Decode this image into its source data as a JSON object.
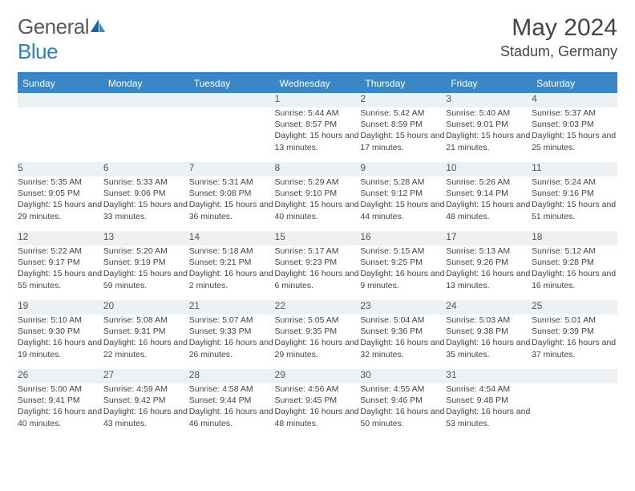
{
  "brand": {
    "part1": "General",
    "part2": "Blue"
  },
  "title": "May 2024",
  "location": "Stadum, Germany",
  "colors": {
    "header_bg": "#3a87c7",
    "header_text": "#ffffff",
    "daynum_bg": "#eef1f3",
    "rule": "#2f7ebf",
    "text": "#444444"
  },
  "weekdays": [
    "Sunday",
    "Monday",
    "Tuesday",
    "Wednesday",
    "Thursday",
    "Friday",
    "Saturday"
  ],
  "weeks": [
    [
      null,
      null,
      null,
      {
        "n": "1",
        "sr": "5:44 AM",
        "ss": "8:57 PM",
        "dl": "15 hours and 13 minutes."
      },
      {
        "n": "2",
        "sr": "5:42 AM",
        "ss": "8:59 PM",
        "dl": "15 hours and 17 minutes."
      },
      {
        "n": "3",
        "sr": "5:40 AM",
        "ss": "9:01 PM",
        "dl": "15 hours and 21 minutes."
      },
      {
        "n": "4",
        "sr": "5:37 AM",
        "ss": "9:03 PM",
        "dl": "15 hours and 25 minutes."
      }
    ],
    [
      {
        "n": "5",
        "sr": "5:35 AM",
        "ss": "9:05 PM",
        "dl": "15 hours and 29 minutes."
      },
      {
        "n": "6",
        "sr": "5:33 AM",
        "ss": "9:06 PM",
        "dl": "15 hours and 33 minutes."
      },
      {
        "n": "7",
        "sr": "5:31 AM",
        "ss": "9:08 PM",
        "dl": "15 hours and 36 minutes."
      },
      {
        "n": "8",
        "sr": "5:29 AM",
        "ss": "9:10 PM",
        "dl": "15 hours and 40 minutes."
      },
      {
        "n": "9",
        "sr": "5:28 AM",
        "ss": "9:12 PM",
        "dl": "15 hours and 44 minutes."
      },
      {
        "n": "10",
        "sr": "5:26 AM",
        "ss": "9:14 PM",
        "dl": "15 hours and 48 minutes."
      },
      {
        "n": "11",
        "sr": "5:24 AM",
        "ss": "9:16 PM",
        "dl": "15 hours and 51 minutes."
      }
    ],
    [
      {
        "n": "12",
        "sr": "5:22 AM",
        "ss": "9:17 PM",
        "dl": "15 hours and 55 minutes."
      },
      {
        "n": "13",
        "sr": "5:20 AM",
        "ss": "9:19 PM",
        "dl": "15 hours and 59 minutes."
      },
      {
        "n": "14",
        "sr": "5:18 AM",
        "ss": "9:21 PM",
        "dl": "16 hours and 2 minutes."
      },
      {
        "n": "15",
        "sr": "5:17 AM",
        "ss": "9:23 PM",
        "dl": "16 hours and 6 minutes."
      },
      {
        "n": "16",
        "sr": "5:15 AM",
        "ss": "9:25 PM",
        "dl": "16 hours and 9 minutes."
      },
      {
        "n": "17",
        "sr": "5:13 AM",
        "ss": "9:26 PM",
        "dl": "16 hours and 13 minutes."
      },
      {
        "n": "18",
        "sr": "5:12 AM",
        "ss": "9:28 PM",
        "dl": "16 hours and 16 minutes."
      }
    ],
    [
      {
        "n": "19",
        "sr": "5:10 AM",
        "ss": "9:30 PM",
        "dl": "16 hours and 19 minutes."
      },
      {
        "n": "20",
        "sr": "5:08 AM",
        "ss": "9:31 PM",
        "dl": "16 hours and 22 minutes."
      },
      {
        "n": "21",
        "sr": "5:07 AM",
        "ss": "9:33 PM",
        "dl": "16 hours and 26 minutes."
      },
      {
        "n": "22",
        "sr": "5:05 AM",
        "ss": "9:35 PM",
        "dl": "16 hours and 29 minutes."
      },
      {
        "n": "23",
        "sr": "5:04 AM",
        "ss": "9:36 PM",
        "dl": "16 hours and 32 minutes."
      },
      {
        "n": "24",
        "sr": "5:03 AM",
        "ss": "9:38 PM",
        "dl": "16 hours and 35 minutes."
      },
      {
        "n": "25",
        "sr": "5:01 AM",
        "ss": "9:39 PM",
        "dl": "16 hours and 37 minutes."
      }
    ],
    [
      {
        "n": "26",
        "sr": "5:00 AM",
        "ss": "9:41 PM",
        "dl": "16 hours and 40 minutes."
      },
      {
        "n": "27",
        "sr": "4:59 AM",
        "ss": "9:42 PM",
        "dl": "16 hours and 43 minutes."
      },
      {
        "n": "28",
        "sr": "4:58 AM",
        "ss": "9:44 PM",
        "dl": "16 hours and 46 minutes."
      },
      {
        "n": "29",
        "sr": "4:56 AM",
        "ss": "9:45 PM",
        "dl": "16 hours and 48 minutes."
      },
      {
        "n": "30",
        "sr": "4:55 AM",
        "ss": "9:46 PM",
        "dl": "16 hours and 50 minutes."
      },
      {
        "n": "31",
        "sr": "4:54 AM",
        "ss": "9:48 PM",
        "dl": "16 hours and 53 minutes."
      },
      null
    ]
  ],
  "labels": {
    "sunrise": "Sunrise:",
    "sunset": "Sunset:",
    "daylight": "Daylight:"
  }
}
